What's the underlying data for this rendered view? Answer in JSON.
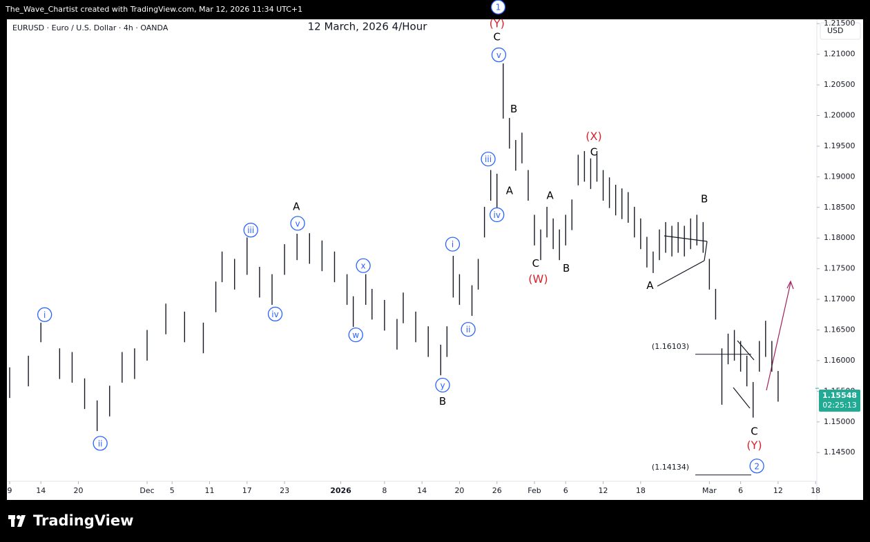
{
  "header": "The_Wave_Chartist created with TradingView.com, Mar 12, 2026 11:34 UTC+1",
  "symbol": "EURUSD · Euro / U.S. Dollar · 4h · OANDA",
  "currency": "USD",
  "footer": "TradingView",
  "chart_data": {
    "type": "range",
    "title": "12 March, 2026 4/Hour",
    "color": "#131722",
    "x": [
      0,
      3,
      5,
      8,
      10,
      12,
      14,
      16,
      18,
      20,
      22,
      25,
      28,
      31,
      33,
      34,
      36,
      38,
      40,
      42,
      44,
      46,
      48,
      50,
      52,
      54,
      55,
      57,
      58,
      60,
      62,
      63,
      65,
      67,
      69,
      70,
      71,
      72,
      74,
      75,
      76,
      77,
      78,
      79,
      80,
      81,
      82,
      83,
      84,
      85,
      86,
      87,
      88,
      89,
      90,
      91,
      92,
      93,
      94,
      95,
      96,
      97,
      98,
      99,
      100,
      101,
      102,
      103,
      104,
      105,
      106,
      107,
      108,
      109,
      110,
      111,
      112,
      113,
      114,
      115,
      116,
      117,
      118,
      119,
      120,
      121,
      122,
      123
    ],
    "high": [
      1.1589,
      1.1608,
      1.1662,
      1.162,
      1.1614,
      1.1571,
      1.1535,
      1.1559,
      1.1614,
      1.162,
      1.165,
      1.1693,
      1.168,
      1.1662,
      1.1729,
      1.1778,
      1.1766,
      1.1801,
      1.1753,
      1.1741,
      1.179,
      1.1807,
      1.1808,
      1.1796,
      1.1778,
      1.1741,
      1.1705,
      1.1741,
      1.1717,
      1.1699,
      1.1668,
      1.1711,
      1.168,
      1.1656,
      1.1626,
      1.1656,
      1.1771,
      1.1741,
      1.1723,
      1.1766,
      1.1851,
      1.1911,
      1.1905,
      1.2085,
      1.1996,
      1.196,
      1.1972,
      1.1911,
      1.1838,
      1.1814,
      1.1851,
      1.1832,
      1.1814,
      1.1838,
      1.1863,
      1.1936,
      1.1942,
      1.193,
      1.1942,
      1.1911,
      1.1899,
      1.1887,
      1.1881,
      1.1875,
      1.1851,
      1.1832,
      1.1802,
      1.1778,
      1.1814,
      1.1826,
      1.182,
      1.1826,
      1.182,
      1.1832,
      1.1838,
      1.1826,
      1.1766,
      1.1717,
      1.162,
      1.1644,
      1.165,
      1.1632,
      1.1608,
      1.1565,
      1.1632,
      1.1665,
      1.1632,
      1.1583
    ],
    "low": [
      1.1539,
      1.1558,
      1.163,
      1.157,
      1.1564,
      1.1521,
      1.1485,
      1.1509,
      1.1564,
      1.157,
      1.16,
      1.1643,
      1.163,
      1.1612,
      1.1679,
      1.1728,
      1.1716,
      1.174,
      1.1703,
      1.1691,
      1.174,
      1.1764,
      1.1758,
      1.1746,
      1.1728,
      1.1691,
      1.1655,
      1.1691,
      1.1667,
      1.1649,
      1.1618,
      1.1661,
      1.163,
      1.1606,
      1.1576,
      1.1606,
      1.1703,
      1.1691,
      1.1673,
      1.1716,
      1.1801,
      1.1861,
      1.1837,
      1.1995,
      1.1946,
      1.191,
      1.1922,
      1.1861,
      1.1788,
      1.1764,
      1.1801,
      1.1782,
      1.1764,
      1.1788,
      1.1813,
      1.1886,
      1.1892,
      1.188,
      1.1892,
      1.1861,
      1.1849,
      1.1837,
      1.1831,
      1.1825,
      1.1801,
      1.1782,
      1.1752,
      1.1743,
      1.1764,
      1.1776,
      1.177,
      1.1776,
      1.177,
      1.1782,
      1.1788,
      1.1776,
      1.1716,
      1.1667,
      1.1528,
      1.1594,
      1.16,
      1.1582,
      1.1558,
      1.1507,
      1.1582,
      1.1606,
      1.1582,
      1.1533
    ],
    "xlim": [
      -0.44,
      129.2
    ],
    "xticks": [
      {
        "value": 0,
        "label": "9"
      },
      {
        "value": 5,
        "label": "14"
      },
      {
        "value": 11,
        "label": "20"
      },
      {
        "value": 22,
        "label": "Dec"
      },
      {
        "value": 26,
        "label": "5"
      },
      {
        "value": 32,
        "label": "11"
      },
      {
        "value": 38,
        "label": "17"
      },
      {
        "value": 44,
        "label": "23"
      },
      {
        "value": 53,
        "label": "2026"
      },
      {
        "value": 60,
        "label": "8"
      },
      {
        "value": 66,
        "label": "14"
      },
      {
        "value": 72,
        "label": "20"
      },
      {
        "value": 78,
        "label": "26"
      },
      {
        "value": 84,
        "label": "Feb"
      },
      {
        "value": 89,
        "label": "6"
      },
      {
        "value": 95,
        "label": "12"
      },
      {
        "value": 101,
        "label": "18"
      },
      {
        "value": 112,
        "label": "Mar"
      },
      {
        "value": 117,
        "label": "6"
      },
      {
        "value": 123,
        "label": "12"
      },
      {
        "value": 129,
        "label": "18"
      }
    ],
    "ylim": [
      1.1403,
      1.2157
    ],
    "yticks": [
      {
        "value": 1.145,
        "label": "1.14500"
      },
      {
        "value": 1.15,
        "label": "1.15000"
      },
      {
        "value": 1.155,
        "label": "1.15500"
      },
      {
        "value": 1.16,
        "label": "1.16000"
      },
      {
        "value": 1.165,
        "label": "1.16500"
      },
      {
        "value": 1.17,
        "label": "1.17000"
      },
      {
        "value": 1.175,
        "label": "1.17500"
      },
      {
        "value": 1.18,
        "label": "1.18000"
      },
      {
        "value": 1.185,
        "label": "1.18500"
      },
      {
        "value": 1.19,
        "label": "1.19000"
      },
      {
        "value": 1.195,
        "label": "1.19500"
      },
      {
        "value": 1.2,
        "label": "1.20000"
      },
      {
        "value": 1.205,
        "label": "1.20500"
      },
      {
        "value": 1.21,
        "label": "1.21000"
      },
      {
        "value": 1.215,
        "label": "1.21500"
      }
    ],
    "last_price": 1.15548,
    "countdown": "02:25:13",
    "levels": [
      {
        "value": 1.16103,
        "label": "(1.16103)"
      },
      {
        "value": 1.14134,
        "label": "(1.14134)"
      }
    ],
    "annotations": [
      {
        "text": "i",
        "x": 5.6,
        "y": 1.1675,
        "color": "#2962ff",
        "circled": true
      },
      {
        "text": "ii",
        "x": 14.5,
        "y": 1.1465,
        "color": "#2962ff",
        "circled": true
      },
      {
        "text": "iii",
        "x": 38.6,
        "y": 1.1813,
        "color": "#2962ff",
        "circled": true
      },
      {
        "text": "iv",
        "x": 42.5,
        "y": 1.1676,
        "color": "#2962ff",
        "circled": true
      },
      {
        "text": "A",
        "x": 45.9,
        "y": 1.1851,
        "color": "#000000"
      },
      {
        "text": "v",
        "x": 46.1,
        "y": 1.1824,
        "color": "#2962ff",
        "circled": true
      },
      {
        "text": "x",
        "x": 56.6,
        "y": 1.1755,
        "color": "#2962ff",
        "circled": true
      },
      {
        "text": "w",
        "x": 55.4,
        "y": 1.1642,
        "color": "#2962ff",
        "circled": true
      },
      {
        "text": "y",
        "x": 69.3,
        "y": 1.156,
        "color": "#2962ff",
        "circled": true
      },
      {
        "text": "B",
        "x": 69.3,
        "y": 1.1533,
        "color": "#000000"
      },
      {
        "text": "i",
        "x": 70.9,
        "y": 1.179,
        "color": "#2962ff",
        "circled": true
      },
      {
        "text": "ii",
        "x": 73.4,
        "y": 1.1651,
        "color": "#2962ff",
        "circled": true
      },
      {
        "text": "iii",
        "x": 76.6,
        "y": 1.1929,
        "color": "#2962ff",
        "circled": true
      },
      {
        "text": "iv",
        "x": 78.0,
        "y": 1.1838,
        "color": "#2962ff",
        "circled": true
      },
      {
        "text": "1",
        "x": 78.2,
        "y": 1.2177,
        "color": "#2962ff",
        "circled": true
      },
      {
        "text": "(Y)",
        "x": 78.0,
        "y": 1.2149,
        "color": "#d8202a"
      },
      {
        "text": "C",
        "x": 78.0,
        "y": 1.2128,
        "color": "#000000"
      },
      {
        "text": "v",
        "x": 78.3,
        "y": 1.2099,
        "color": "#2962ff",
        "circled": true
      },
      {
        "text": "B",
        "x": 80.7,
        "y": 1.201,
        "color": "#000000"
      },
      {
        "text": "A",
        "x": 80.0,
        "y": 1.1877,
        "color": "#000000"
      },
      {
        "text": "A",
        "x": 86.5,
        "y": 1.1869,
        "color": "#000000"
      },
      {
        "text": "C",
        "x": 84.2,
        "y": 1.1758,
        "color": "#000000"
      },
      {
        "text": "(W)",
        "x": 84.6,
        "y": 1.1732,
        "color": "#d8202a"
      },
      {
        "text": "B",
        "x": 89.1,
        "y": 1.175,
        "color": "#000000"
      },
      {
        "text": "(X)",
        "x": 93.5,
        "y": 1.1965,
        "color": "#d8202a"
      },
      {
        "text": "C",
        "x": 93.5,
        "y": 1.194,
        "color": "#000000"
      },
      {
        "text": "A",
        "x": 102.5,
        "y": 1.1722,
        "color": "#000000"
      },
      {
        "text": "B",
        "x": 111.2,
        "y": 1.1863,
        "color": "#000000"
      },
      {
        "text": "C",
        "x": 119.2,
        "y": 1.1484,
        "color": "#000000"
      },
      {
        "text": "(Y)",
        "x": 119.2,
        "y": 1.1461,
        "color": "#d8202a"
      },
      {
        "text": "2",
        "x": 119.6,
        "y": 1.1428,
        "color": "#2962ff",
        "circled": true
      }
    ]
  }
}
